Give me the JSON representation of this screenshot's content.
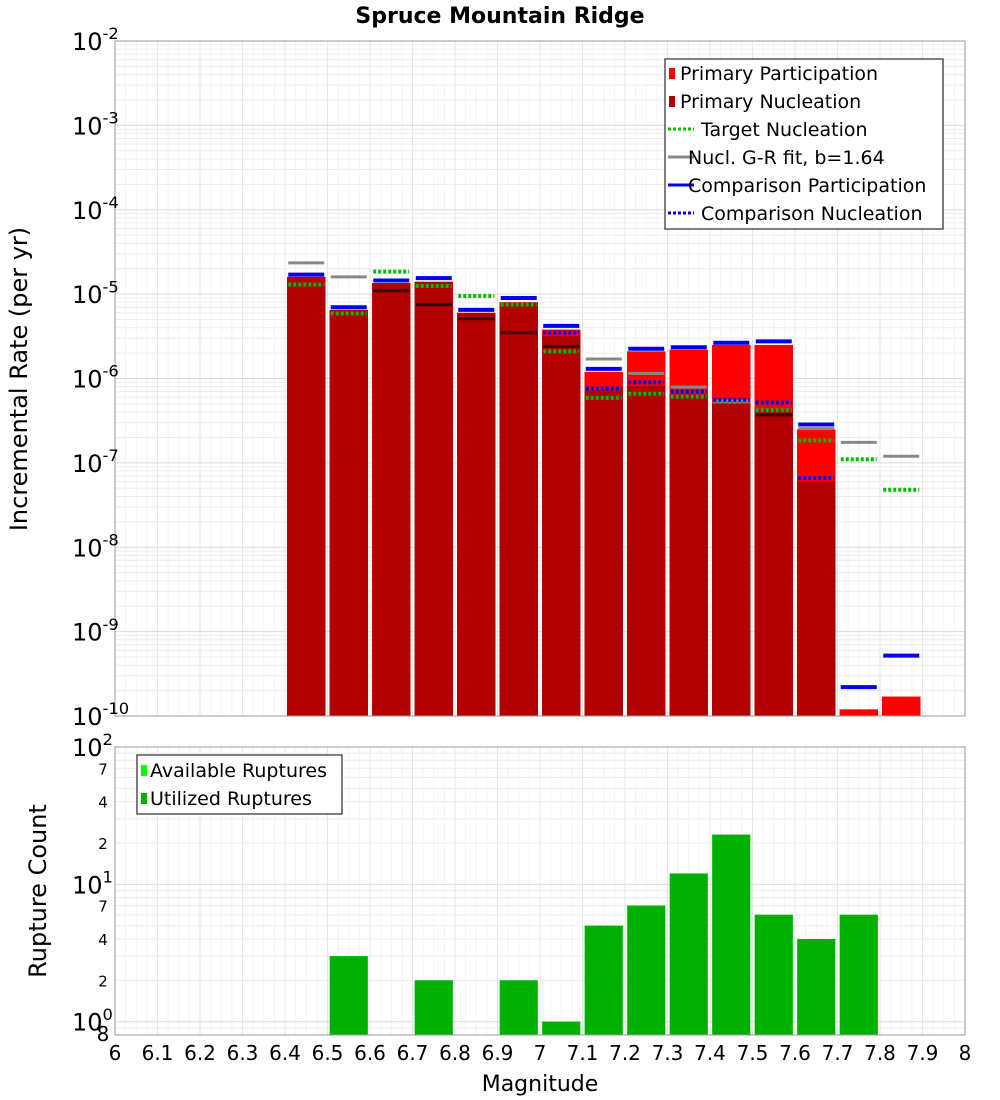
{
  "chart_data": [
    {
      "type": "bar",
      "title": "Spruce Mountain Ridge",
      "xlabel": "",
      "ylabel": "Incremental Rate (per yr)",
      "yscale": "log",
      "xlim": [
        6,
        8
      ],
      "ylim": [
        1e-10,
        0.01
      ],
      "grid": true,
      "legend_position": "top-right",
      "y_ticks": [
        {
          "base": "10",
          "exp": "-2",
          "value": 0.01
        },
        {
          "base": "10",
          "exp": "-3",
          "value": 0.001
        },
        {
          "base": "10",
          "exp": "-4",
          "value": 0.0001
        },
        {
          "base": "10",
          "exp": "-5",
          "value": 1e-05
        },
        {
          "base": "10",
          "exp": "-6",
          "value": 1e-06
        },
        {
          "base": "10",
          "exp": "-7",
          "value": 1e-07
        },
        {
          "base": "10",
          "exp": "-8",
          "value": 1e-08
        },
        {
          "base": "10",
          "exp": "-9",
          "value": 1e-09
        },
        {
          "base": "10",
          "exp": "-10",
          "value": 1e-10
        }
      ],
      "bin_width": 0.1,
      "bins": [
        6.45,
        6.55,
        6.65,
        6.75,
        6.85,
        6.95,
        7.05,
        7.15,
        7.25,
        7.35,
        7.45,
        7.55,
        7.65,
        7.75,
        7.85
      ],
      "series": [
        {
          "name": "Primary Participation",
          "style": "bar",
          "color": "#ff0000",
          "values": [
            1.6e-05,
            6.5e-06,
            1.35e-05,
            1.4e-05,
            6e-06,
            8e-06,
            3.8e-06,
            1.2e-06,
            2.1e-06,
            2.2e-06,
            2.5e-06,
            2.5e-06,
            2.5e-07,
            1.2e-10,
            1.7e-10
          ]
        },
        {
          "name": "Primary Nucleation",
          "style": "bar",
          "color": "#b20000",
          "values": [
            1.6e-05,
            6.5e-06,
            1.35e-05,
            1.4e-05,
            6e-06,
            8e-06,
            3.2e-06,
            7.2e-07,
            8.2e-07,
            6.5e-07,
            5e-07,
            4.3e-07,
            6e-08,
            null,
            null
          ]
        },
        {
          "name": "Target Nucleation",
          "style": "dotted",
          "color": "#00bb00",
          "values": [
            1.3e-05,
            5.9e-06,
            1.85e-05,
            1.25e-05,
            9.5e-06,
            7.5e-06,
            2.1e-06,
            5.9e-07,
            6.6e-07,
            6.1e-07,
            5.3e-07,
            4.2e-07,
            1.85e-07,
            1.1e-07,
            4.8e-08
          ]
        },
        {
          "name": "Nucl. G-R fit, b=1.64",
          "style": "solid",
          "color": "#888888",
          "values": [
            2.35e-05,
            1.6e-05,
            1.1e-05,
            7.5e-06,
            5.1e-06,
            3.5e-06,
            2.4e-06,
            1.7e-06,
            1.15e-06,
            7.9e-07,
            5.4e-07,
            3.7e-07,
            2.55e-07,
            1.75e-07,
            1.2e-07
          ]
        },
        {
          "name": "Comparison Participation",
          "style": "solid",
          "color": "#0000ee",
          "values": [
            1.7e-05,
            7e-06,
            1.45e-05,
            1.55e-05,
            6.5e-06,
            9e-06,
            4.2e-06,
            1.3e-06,
            2.25e-06,
            2.35e-06,
            2.65e-06,
            2.75e-06,
            2.85e-07,
            2.2e-10,
            5.2e-10
          ]
        },
        {
          "name": "Comparison Nucleation",
          "style": "dotted",
          "color": "#0000ee",
          "values": [
            null,
            null,
            null,
            null,
            null,
            null,
            3.5e-06,
            7.6e-07,
            9e-07,
            7e-07,
            5.6e-07,
            5.2e-07,
            6.6e-08,
            null,
            null
          ]
        }
      ]
    },
    {
      "type": "bar",
      "title": "",
      "xlabel": "Magnitude",
      "ylabel": "Rupture Count",
      "yscale": "log",
      "xlim": [
        6,
        8
      ],
      "ylim": [
        0.8,
        100
      ],
      "grid": true,
      "legend_position": "top-left",
      "x_ticks": [
        "6",
        "6.1",
        "6.2",
        "6.3",
        "6.4",
        "6.5",
        "6.6",
        "6.7",
        "6.8",
        "6.9",
        "7",
        "7.1",
        "7.2",
        "7.3",
        "7.4",
        "7.5",
        "7.6",
        "7.7",
        "7.8",
        "7.9",
        "8"
      ],
      "y_major_ticks": [
        {
          "base": "10",
          "exp": "2",
          "value": 100
        },
        {
          "base": "10",
          "exp": "1",
          "value": 10
        },
        {
          "base": "10",
          "exp": "0",
          "value": 1
        }
      ],
      "y_minor_ticks": [
        {
          "label": "7",
          "value": 70
        },
        {
          "label": "4",
          "value": 40
        },
        {
          "label": "2",
          "value": 20
        },
        {
          "label": "7",
          "value": 7
        },
        {
          "label": "4",
          "value": 4
        },
        {
          "label": "2",
          "value": 2
        },
        {
          "label": "8",
          "value": 0.8
        }
      ],
      "bins": [
        6.55,
        6.75,
        6.95,
        7.05,
        7.15,
        7.25,
        7.35,
        7.45,
        7.55,
        7.65,
        7.75
      ],
      "series": [
        {
          "name": "Available Ruptures",
          "style": "bar",
          "color": "#00ff00",
          "values": [
            3,
            2,
            2,
            1,
            5,
            7,
            12,
            23,
            6,
            4,
            6
          ]
        },
        {
          "name": "Utilized Ruptures",
          "style": "bar",
          "color": "#00b000",
          "values": [
            3,
            2,
            2,
            1,
            5,
            7,
            12,
            23,
            6,
            4,
            6
          ]
        }
      ]
    }
  ]
}
